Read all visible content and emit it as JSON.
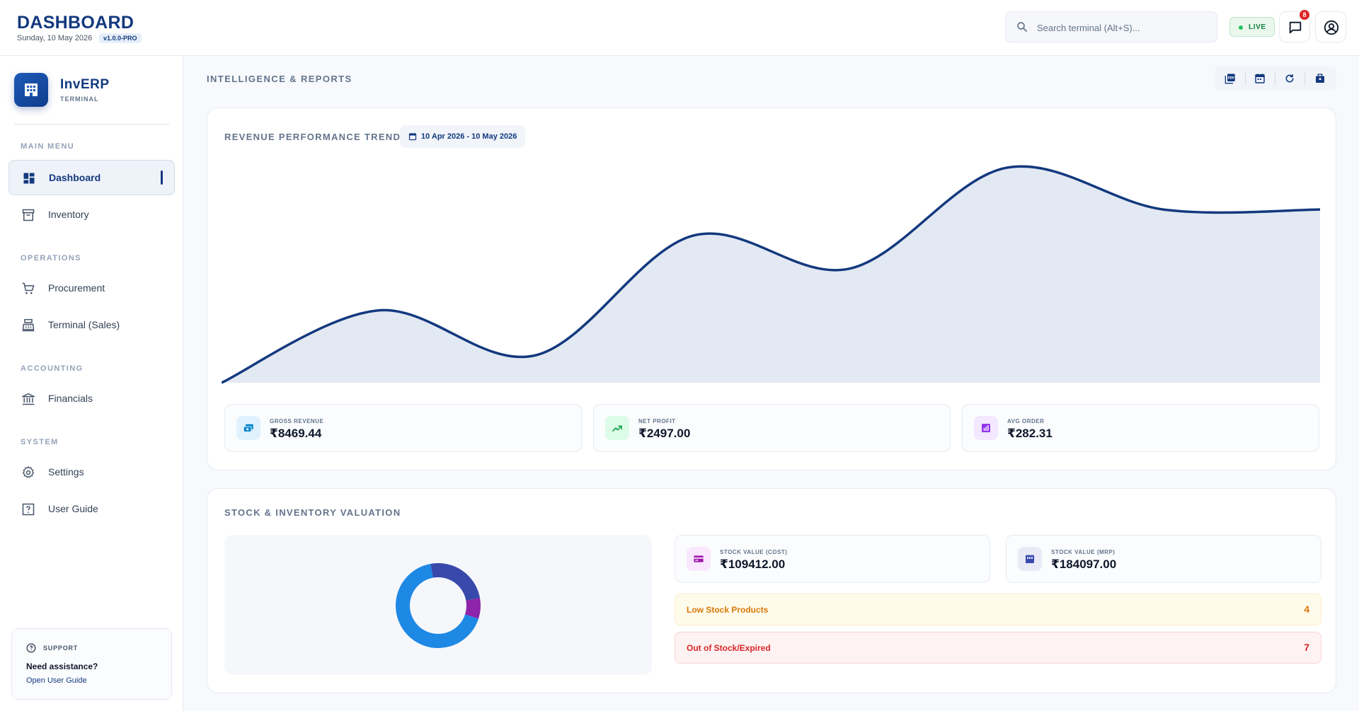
{
  "header": {
    "title": "DASHBOARD",
    "date": "Sunday, 10 May 2026",
    "version": "v1.0.0-PRO",
    "search_placeholder": "Search terminal (Alt+S)...",
    "live_label": "LIVE",
    "notification_count": "8",
    "icons": [
      "search-icon",
      "message-icon",
      "user-circle-icon"
    ]
  },
  "sidebar": {
    "app_name": "InvERP",
    "app_sub": "TERMINAL",
    "sections": [
      {
        "label": "MAIN MENU",
        "items": [
          {
            "label": "Dashboard",
            "icon": "dashboard-icon",
            "active": true
          },
          {
            "label": "Inventory",
            "icon": "archive-box-icon",
            "active": false
          }
        ]
      },
      {
        "label": "OPERATIONS",
        "items": [
          {
            "label": "Procurement",
            "icon": "cart-icon",
            "active": false
          },
          {
            "label": "Terminal (Sales)",
            "icon": "register-icon",
            "active": false
          }
        ]
      },
      {
        "label": "ACCOUNTING",
        "items": [
          {
            "label": "Financials",
            "icon": "bank-icon",
            "active": false
          }
        ]
      },
      {
        "label": "SYSTEM",
        "items": [
          {
            "label": "Settings",
            "icon": "gear-icon",
            "active": false
          },
          {
            "label": "User Guide",
            "icon": "help-box-icon",
            "active": false
          }
        ]
      }
    ],
    "support": {
      "label": "SUPPORT",
      "question": "Need assistance?",
      "link": "Open User Guide"
    }
  },
  "main": {
    "title": "INTELLIGENCE & REPORTS",
    "toolbar_icons": [
      "pdf-icon",
      "calendar-icon",
      "refresh-icon",
      "inventory-icon"
    ],
    "revenue": {
      "title": "REVENUE PERFORMANCE TREND",
      "date_range": "10 Apr 2026 - 10 May 2026",
      "metrics": [
        {
          "label": "GROSS REVENUE",
          "value": "₹8469.44",
          "icon": "cash-icon",
          "color": "#0284c7"
        },
        {
          "label": "NET PROFIT",
          "value": "₹2497.00",
          "icon": "trending-up-icon",
          "color": "#16a34a"
        },
        {
          "label": "AVG ORDER",
          "value": "₹282.31",
          "icon": "analytics-icon",
          "color": "#9333ea"
        }
      ]
    },
    "stock": {
      "title": "STOCK & INVENTORY VALUATION",
      "cards": [
        {
          "label": "STOCK VALUE (COST)",
          "value": "₹109412.00",
          "icon": "card-icon",
          "color": "#a21caf"
        },
        {
          "label": "STOCK VALUE (MRP)",
          "value": "₹184097.00",
          "icon": "store-icon",
          "color": "#3949ab"
        }
      ],
      "alerts": [
        {
          "label": "Low Stock Products",
          "count": "4"
        },
        {
          "label": "Out of Stock/Expired",
          "count": "7"
        }
      ]
    }
  },
  "chart_data": [
    {
      "type": "area",
      "title": "REVENUE PERFORMANCE TREND",
      "x": [
        0,
        1,
        2,
        3,
        4,
        5,
        6,
        7
      ],
      "values": [
        0,
        330,
        125,
        670,
        520,
        980,
        790,
        790
      ],
      "ylim": [
        0,
        1000
      ],
      "grid": false,
      "color": "#13397e",
      "fill": "#e3e9f3"
    },
    {
      "type": "pie",
      "slices": [
        {
          "value": 67,
          "color": "#1e88e5"
        },
        {
          "value": 25,
          "color": "#3949ab"
        },
        {
          "value": 8,
          "color": "#8e24aa"
        }
      ]
    }
  ]
}
